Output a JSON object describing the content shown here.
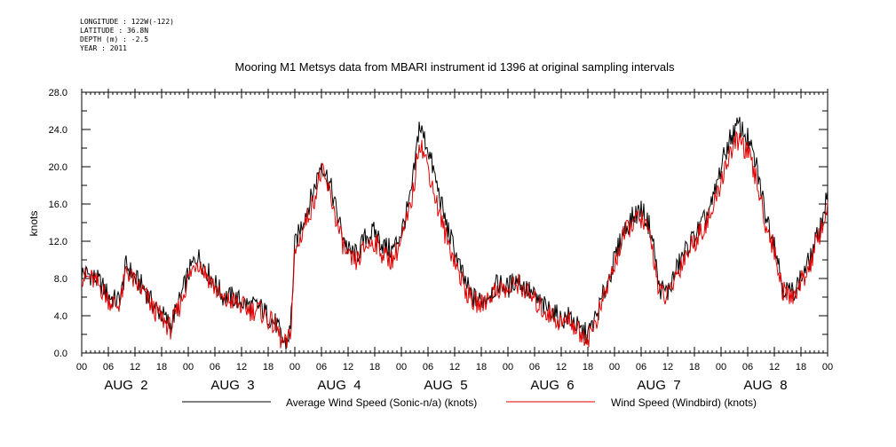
{
  "header": {
    "longitude": "LONGITUDE : 122W(-122)",
    "latitude": "LATITUDE : 36.8N",
    "depth": "DEPTH (m) : -2.5",
    "year": "YEAR : 2011"
  },
  "chart_data": {
    "type": "line",
    "title": "Mooring M1 Metsys data from MBARI instrument id 1396 at original sampling intervals",
    "xlabel": "",
    "ylabel": "knots",
    "ylim": [
      0,
      28
    ],
    "xlim_hours": [
      0,
      168
    ],
    "grid": false,
    "y_ticks": [
      "0.0",
      "4.0",
      "8.0",
      "12.0",
      "16.0",
      "20.0",
      "24.0",
      "28.0"
    ],
    "x_tick_hours": [
      "00",
      "06",
      "12",
      "18"
    ],
    "day_labels": [
      "AUG  2",
      "AUG  3",
      "AUG  4",
      "AUG  5",
      "AUG  6",
      "AUG  7",
      "AUG  8"
    ],
    "series": [
      {
        "name": "Average Wind Speed (Sonic-n/a) (knots)",
        "color": "#000000",
        "hours": [
          0,
          2,
          4,
          6,
          8,
          9,
          10,
          12,
          14,
          16,
          18,
          20,
          22,
          24,
          26,
          28,
          30,
          32,
          34,
          36,
          38,
          40,
          42,
          44,
          45,
          46,
          47,
          48,
          50,
          52,
          54,
          56,
          58,
          60,
          62,
          64,
          66,
          68,
          70,
          72,
          74,
          75,
          76,
          78,
          80,
          82,
          84,
          86,
          88,
          90,
          92,
          94,
          96,
          98,
          100,
          102,
          104,
          106,
          108,
          110,
          112,
          114,
          116,
          118,
          120,
          122,
          124,
          126,
          128,
          129,
          130,
          132,
          134,
          136,
          138,
          140,
          142,
          144,
          146,
          148,
          150,
          152,
          154,
          156,
          158,
          160,
          162,
          164,
          166,
          168
        ],
        "values": [
          8.6,
          8.4,
          7.6,
          6.2,
          5.5,
          6.5,
          9.5,
          8.0,
          7.0,
          5.2,
          4.2,
          3.0,
          5.5,
          8.5,
          10.5,
          9.0,
          7.5,
          6.0,
          6.0,
          5.5,
          5.0,
          5.0,
          4.0,
          3.0,
          1.5,
          1.0,
          2.5,
          11.5,
          14.5,
          17.0,
          20.5,
          18.0,
          14.0,
          11.0,
          10.5,
          12.5,
          13.0,
          11.5,
          11.0,
          13.0,
          16.5,
          20.0,
          24.5,
          22.0,
          18.0,
          14.0,
          11.0,
          8.0,
          6.0,
          5.5,
          6.5,
          7.5,
          7.0,
          8.0,
          7.0,
          6.0,
          5.0,
          4.5,
          3.5,
          4.0,
          2.5,
          2.0,
          4.0,
          7.0,
          10.0,
          13.0,
          14.5,
          15.5,
          13.5,
          11.0,
          7.0,
          6.5,
          9.0,
          11.0,
          12.5,
          14.0,
          16.0,
          20.0,
          23.0,
          24.5,
          23.0,
          20.0,
          15.0,
          12.0,
          7.0,
          6.5,
          8.0,
          10.0,
          13.0,
          17.0
        ]
      },
      {
        "name": "Wind Speed (Windbird) (knots)",
        "color": "#e00000",
        "hours": [
          0,
          2,
          4,
          6,
          8,
          9,
          10,
          12,
          14,
          16,
          18,
          20,
          22,
          24,
          26,
          28,
          30,
          32,
          34,
          36,
          38,
          40,
          42,
          44,
          45,
          46,
          47,
          48,
          50,
          52,
          54,
          56,
          58,
          60,
          62,
          64,
          66,
          68,
          70,
          72,
          74,
          75,
          76,
          78,
          80,
          82,
          84,
          86,
          88,
          90,
          92,
          94,
          96,
          98,
          100,
          102,
          104,
          106,
          108,
          110,
          112,
          114,
          116,
          118,
          120,
          122,
          124,
          126,
          128,
          129,
          130,
          132,
          134,
          136,
          138,
          140,
          142,
          144,
          146,
          148,
          150,
          152,
          154,
          156,
          158,
          160,
          162,
          164,
          166,
          168
        ],
        "values": [
          8.2,
          8.0,
          7.2,
          5.8,
          5.0,
          6.0,
          9.0,
          7.5,
          6.5,
          4.8,
          3.8,
          2.6,
          5.0,
          8.0,
          10.0,
          8.5,
          7.0,
          5.5,
          5.6,
          5.0,
          4.6,
          4.6,
          3.6,
          2.6,
          1.2,
          0.8,
          2.0,
          10.5,
          13.5,
          16.0,
          19.5,
          17.0,
          13.0,
          10.0,
          9.8,
          11.5,
          12.0,
          10.5,
          10.0,
          12.0,
          15.5,
          18.5,
          23.0,
          20.0,
          16.0,
          12.5,
          10.0,
          7.2,
          5.5,
          5.2,
          6.2,
          7.0,
          6.6,
          7.6,
          6.6,
          5.6,
          4.6,
          4.0,
          3.2,
          3.6,
          2.2,
          1.6,
          3.6,
          6.5,
          9.5,
          12.5,
          14.0,
          14.5,
          12.5,
          10.0,
          6.5,
          6.0,
          8.5,
          10.5,
          12.0,
          13.5,
          15.0,
          18.5,
          21.5,
          23.0,
          21.5,
          18.5,
          14.0,
          11.0,
          6.5,
          6.0,
          7.5,
          9.5,
          12.5,
          15.5
        ]
      }
    ],
    "legend_position": "bottom"
  }
}
